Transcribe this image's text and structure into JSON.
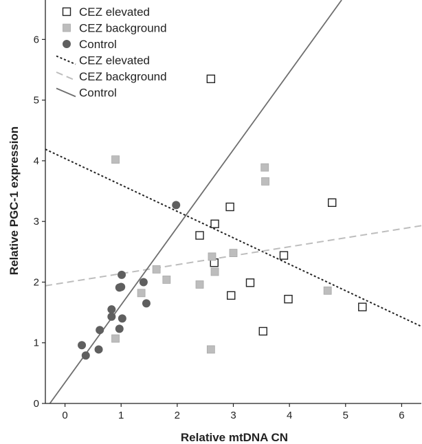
{
  "chart_data": {
    "type": "scatter",
    "xlabel": "Relative mtDNA CN",
    "ylabel": "Relative PGC-1 expression",
    "xlim": [
      -0.35,
      6.35
    ],
    "ylim": [
      0,
      6.65
    ],
    "xticks": [
      0,
      1,
      2,
      3,
      4,
      5,
      6
    ],
    "yticks": [
      0,
      1,
      2,
      3,
      4,
      5,
      6
    ],
    "grid": false,
    "legend_position": "top-left",
    "colors": {
      "elevated_marker_edge": "#222222",
      "background_marker_fill": "#bdbdbd",
      "control_marker_fill": "#5f5f5f",
      "elevated_line": "#222222",
      "background_line": "#bdbdbd",
      "control_line": "#6e6e6e",
      "axis": "#222222"
    },
    "series": [
      {
        "name": "CEZ elevated",
        "marker": "open-square",
        "points": [
          [
            2.6,
            5.35
          ],
          [
            2.94,
            3.24
          ],
          [
            2.67,
            2.96
          ],
          [
            2.4,
            2.77
          ],
          [
            2.66,
            2.32
          ],
          [
            3.9,
            2.44
          ],
          [
            4.76,
            3.31
          ],
          [
            3.3,
            1.99
          ],
          [
            2.96,
            1.78
          ],
          [
            3.98,
            1.72
          ],
          [
            3.53,
            1.19
          ],
          [
            5.3,
            1.59
          ]
        ]
      },
      {
        "name": "CEZ background",
        "marker": "filled-square",
        "points": [
          [
            0.9,
            4.02
          ],
          [
            3.56,
            3.89
          ],
          [
            3.57,
            3.66
          ],
          [
            3.0,
            2.48
          ],
          [
            2.62,
            2.42
          ],
          [
            2.67,
            2.17
          ],
          [
            2.4,
            1.96
          ],
          [
            1.63,
            2.21
          ],
          [
            1.81,
            2.04
          ],
          [
            1.36,
            1.82
          ],
          [
            0.9,
            1.07
          ],
          [
            2.6,
            0.89
          ],
          [
            4.68,
            1.86
          ]
        ]
      },
      {
        "name": "Control",
        "marker": "filled-circle",
        "points": [
          [
            0.3,
            0.96
          ],
          [
            0.37,
            0.79
          ],
          [
            0.6,
            0.89
          ],
          [
            0.62,
            1.21
          ],
          [
            0.83,
            1.43
          ],
          [
            0.83,
            1.55
          ],
          [
            0.97,
            1.91
          ],
          [
            1.0,
            1.92
          ],
          [
            1.01,
            2.12
          ],
          [
            0.97,
            1.23
          ],
          [
            1.02,
            1.4
          ],
          [
            1.4,
            2.0
          ],
          [
            1.45,
            1.65
          ],
          [
            1.98,
            3.27
          ]
        ]
      }
    ],
    "fit_lines": [
      {
        "name": "CEZ elevated",
        "style": "dotted",
        "points": [
          [
            -0.35,
            4.19
          ],
          [
            6.35,
            1.27
          ]
        ]
      },
      {
        "name": "CEZ background",
        "style": "dashed",
        "points": [
          [
            -0.35,
            1.94
          ],
          [
            6.35,
            2.93
          ]
        ]
      },
      {
        "name": "Control",
        "style": "solid",
        "points": [
          [
            -0.27,
            0.0
          ],
          [
            4.93,
            6.65
          ]
        ]
      }
    ]
  }
}
